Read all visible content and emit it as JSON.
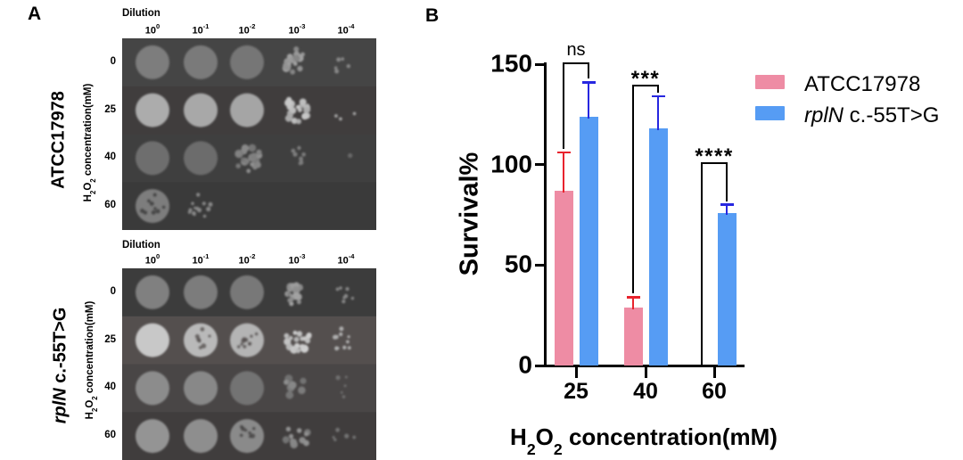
{
  "figure": {
    "panel_a_label": "A",
    "panel_b_label": "B"
  },
  "panel_a": {
    "dilution_label": "Dilution",
    "dilutions": [
      {
        "base": "10",
        "exp": "0"
      },
      {
        "base": "10",
        "exp": "-1"
      },
      {
        "base": "10",
        "exp": "-2"
      },
      {
        "base": "10",
        "exp": "-3"
      },
      {
        "base": "10",
        "exp": "-4"
      }
    ],
    "y_axis_title": {
      "p1": "H",
      "s1": "2",
      "p2": "O",
      "s2": "2",
      "rest": " concentration(mM)"
    },
    "plates": [
      {
        "strain_italic": "",
        "strain_rest": "ATCC17978",
        "rows": [
          {
            "conc": "0",
            "bg": "#454545",
            "spots": [
              "disc:125",
              "disc:122",
              "disc:118",
              "cluster:150:16",
              "dots:135:5"
            ]
          },
          {
            "conc": "25",
            "bg": "#403d3d",
            "spots": [
              "disc:172",
              "disc:168",
              "disc:165",
              "cluster:185:20",
              "dots:165:3"
            ]
          },
          {
            "conc": "40",
            "bg": "#3f3f3f",
            "spots": [
              "disc:110",
              "disc:108",
              "cluster:130:22",
              "dots:125:8",
              "dots:105:1"
            ]
          },
          {
            "conc": "60",
            "bg": "#3a3a3a",
            "spots": [
              "mottled:125:9",
              "dots:135:13",
              "none",
              "none",
              "none"
            ]
          }
        ]
      },
      {
        "strain_italic": "rplN",
        "strain_rest": " c.-55T>G",
        "rows": [
          {
            "conc": "0",
            "bg": "#3c3c3c",
            "spots": [
              "disc:128",
              "disc:124",
              "disc:120",
              "cluster:150:17",
              "dots:135:7"
            ]
          },
          {
            "conc": "25",
            "bg": "#544f4e",
            "spots": [
              "disc:200",
              "mottled:185:7",
              "mottled:180:10",
              "cluster:190:20",
              "dots:175:10"
            ]
          },
          {
            "conc": "40",
            "bg": "#494646",
            "spots": [
              "disc:140",
              "disc:136",
              "disc:115",
              "cluster:128:8",
              "dots:112:5"
            ]
          },
          {
            "conc": "60",
            "bg": "#403d3d",
            "spots": [
              "disc:148",
              "disc:142",
              "mottled:138:8",
              "cluster:132:12",
              "dots:115:5"
            ]
          }
        ]
      }
    ]
  },
  "chart_data": {
    "type": "bar",
    "categories": [
      "25",
      "40",
      "60"
    ],
    "series": [
      {
        "name": "ATCC17978",
        "name_italic": "",
        "name_rest": "ATCC17978",
        "color": "#EE8CA4",
        "error_color": "#E8232D",
        "values": [
          87,
          29,
          0
        ],
        "errors": [
          19,
          5,
          0
        ]
      },
      {
        "name": "rplN c.-55T>G",
        "name_italic": "rplN",
        "name_rest": " c.-55T>G",
        "color": "#569CF4",
        "error_color": "#2727E0",
        "values": [
          124,
          118,
          76
        ],
        "errors": [
          17,
          16,
          4
        ]
      }
    ],
    "ylabel": "Survival%",
    "yticks": [
      0,
      50,
      100,
      150
    ],
    "ylim": [
      0,
      150
    ],
    "xlabel": "H2O2 concentration(mM)",
    "xlabel_parts": {
      "p1": "H",
      "s1": "2",
      "p2": "O",
      "s2": "2",
      "rest": " concentration(mM)"
    },
    "significance": [
      {
        "group": 0,
        "label": "ns",
        "top_value": 151
      },
      {
        "group": 1,
        "label": "***",
        "top_value": 140
      },
      {
        "group": 2,
        "label": "****",
        "top_value": 101
      }
    ],
    "legend_position": "right",
    "grid": false
  }
}
